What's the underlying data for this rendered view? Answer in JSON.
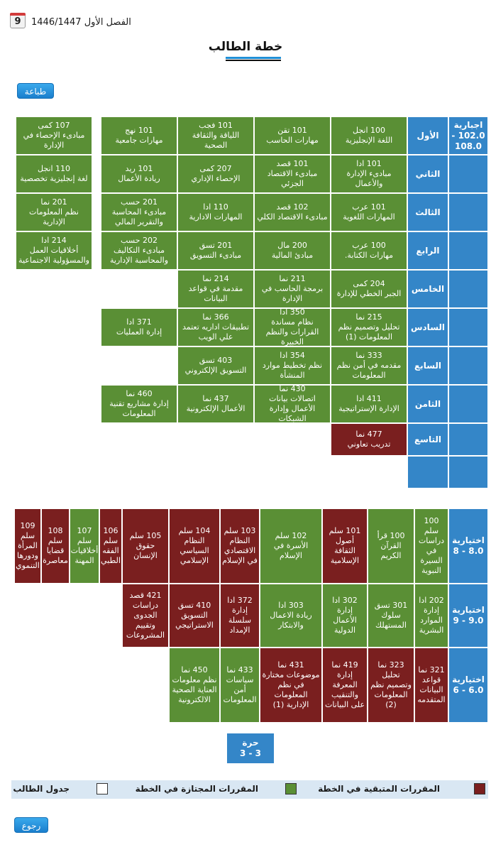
{
  "header": {
    "semester": "الفصل الأول 1446/1447",
    "calendar_day": "9",
    "title": "خطة الطالب"
  },
  "buttons": {
    "print": "طباعة",
    "back": "رجوع"
  },
  "mandatory": {
    "label": "اجبارية 102.0 - 108.0",
    "levels": [
      {
        "name": "الأول",
        "courses": [
          {
            "code": "100 انجل",
            "title": "اللغة الإنجليزية",
            "status": "passed"
          },
          {
            "code": "101 تقن",
            "title": "مهارات الحاسب",
            "status": "passed"
          },
          {
            "code": "101 فجب",
            "title": "اللياقة والثقافة الصحية",
            "status": "passed"
          },
          {
            "code": "101 نهج",
            "title": "مهارات جامعية",
            "status": "passed"
          },
          {
            "code": "107 كمى",
            "title": "مبادىء الإحصاء في الإدارة",
            "status": "passed"
          }
        ]
      },
      {
        "name": "الثاني",
        "courses": [
          {
            "code": "101 ادا",
            "title": "مبادىء الإدارة والأعمال",
            "status": "passed"
          },
          {
            "code": "101 قصد",
            "title": "مبادىء الاقتصاد الجزئي",
            "status": "passed"
          },
          {
            "code": "207 كمى",
            "title": "الإحصاء الإداري",
            "status": "passed"
          },
          {
            "code": "101 ريد",
            "title": "ريادة الأعمال",
            "status": "passed"
          },
          {
            "code": "110 انجل",
            "title": "لغة إنجليزية تخصصية",
            "status": "passed"
          }
        ]
      },
      {
        "name": "الثالث",
        "courses": [
          {
            "code": "101 عرب",
            "title": "المهارات اللغوية",
            "status": "passed"
          },
          {
            "code": "102 قصد",
            "title": "مبادىء الاقتصاد الكلي",
            "status": "passed"
          },
          {
            "code": "110 ادا",
            "title": "المهارات الادارية",
            "status": "passed"
          },
          {
            "code": "201 حسب",
            "title": "مبادىء المحاسبة والتقرير المالي",
            "status": "passed"
          },
          {
            "code": "201 نما",
            "title": "نظم المعلومات الإدارية",
            "status": "passed"
          }
        ]
      },
      {
        "name": "الرابع",
        "courses": [
          {
            "code": "100 عرب",
            "title": "مهارات الكتابة.",
            "status": "passed"
          },
          {
            "code": "200 مال",
            "title": "مبادئ المالية",
            "status": "passed"
          },
          {
            "code": "201 تسق",
            "title": "مبادىء التسويق",
            "status": "passed"
          },
          {
            "code": "202 حسب",
            "title": "مبادىء التكاليف والمحاسبة الإدارية",
            "status": "passed"
          },
          {
            "code": "214 ادا",
            "title": "أخلاقيات العمل والمسؤولية الاجتماعية",
            "status": "passed"
          }
        ]
      },
      {
        "name": "الخامس",
        "courses": [
          {
            "code": "204 كمى",
            "title": "الجبر الخطي للإدارة",
            "status": "passed"
          },
          {
            "code": "211 نما",
            "title": "برمجة الحاسب في الإدارة",
            "status": "passed"
          },
          {
            "code": "214 نما",
            "title": "مقدمة في قواعد البيانات",
            "status": "passed"
          }
        ]
      },
      {
        "name": "السادس",
        "courses": [
          {
            "code": "215 نما",
            "title": "تحليل وتصميم نظم المعلومات (1)",
            "status": "passed"
          },
          {
            "code": "350 ادا",
            "title": "نظام مساندة القرارات والنظم الخبيرة",
            "status": "passed"
          },
          {
            "code": "366 نما",
            "title": "تطبيقات اداريه تعتمد علي الويب",
            "status": "passed"
          },
          {
            "code": "371 ادا",
            "title": "إدارة العمليات",
            "status": "passed"
          }
        ]
      },
      {
        "name": "السابع",
        "courses": [
          {
            "code": "333 نما",
            "title": "مقدمه في أمن نظم المعلومات",
            "status": "passed"
          },
          {
            "code": "354 ادا",
            "title": "نظم تخطيط موارد المنشأة",
            "status": "passed"
          },
          {
            "code": "403 تسق",
            "title": "التسويق الإلكتروني",
            "status": "passed"
          }
        ]
      },
      {
        "name": "الثامن",
        "courses": [
          {
            "code": "411 ادا",
            "title": "الإدارة الإستراتيجية",
            "status": "passed"
          },
          {
            "code": "430 نما",
            "title": "اتصالات بيانات الأعمال وإدارة الشبكات",
            "status": "passed"
          },
          {
            "code": "437 نما",
            "title": "الأعمال الإلكترونية",
            "status": "passed"
          },
          {
            "code": "460 نما",
            "title": "إدارة مشاريع تقنية المعلومات",
            "status": "passed"
          }
        ]
      },
      {
        "name": "التاسع",
        "courses": [
          {
            "code": "477 نما",
            "title": "تدريب تعاوني",
            "status": "remaining"
          }
        ]
      },
      {
        "name": "",
        "courses": []
      }
    ]
  },
  "electives": [
    {
      "label": "اختيارية 8.0 - 8",
      "courses": [
        {
          "code": "100 سلم",
          "title": "دراسات في السيرة النبوية",
          "status": "passed"
        },
        {
          "code": "100 قرأ",
          "title": "القرآن الكريم",
          "status": "passed"
        },
        {
          "code": "101 سلم",
          "title": "أصول الثقافة الإسلامية",
          "status": "remaining"
        },
        {
          "code": "102 سلم",
          "title": "الأسرة في الإسلام",
          "status": "passed"
        },
        {
          "code": "103 سلم",
          "title": "النظام الاقتصادي في الإسلام",
          "status": "remaining"
        },
        {
          "code": "104 سلم",
          "title": "النظام السياسي الإسلامي",
          "status": "remaining"
        },
        {
          "code": "105 سلم",
          "title": "حقوق الإنسان",
          "status": "remaining"
        },
        {
          "code": "106 سلم",
          "title": "الفقه الطبي",
          "status": "remaining"
        },
        {
          "code": "107 سلم",
          "title": "أخلاقيات المهنة",
          "status": "passed"
        },
        {
          "code": "108 سلم",
          "title": "قضايا معاصرة",
          "status": "remaining"
        },
        {
          "code": "109 سلم",
          "title": "المرأة ودورها التنموي",
          "status": "remaining"
        }
      ]
    },
    {
      "label": "اختيارية 9.0 - 9",
      "courses": [
        {
          "code": "202 ادا",
          "title": "إدارة الموارد البشرية",
          "status": "passed"
        },
        {
          "code": "301 تسق",
          "title": "سلوك المستهلك",
          "status": "passed"
        },
        {
          "code": "302 ادا",
          "title": "إدارة الأعمال الدولية",
          "status": "passed"
        },
        {
          "code": "303 ادا",
          "title": "ريادة الاعمال والابتكار",
          "status": "passed"
        },
        {
          "code": "372 ادا",
          "title": "إدارة سلسلة الإمداد",
          "status": "remaining"
        },
        {
          "code": "410 تسق",
          "title": "التسويق الاستراتيجي",
          "status": "remaining"
        },
        {
          "code": "421 قصد",
          "title": "دراسات الجدوى وتقييم المشروعات",
          "status": "remaining"
        }
      ]
    },
    {
      "label": "اختيارية 6.0 - 6",
      "courses": [
        {
          "code": "321 نما",
          "title": "قواعد البيانات المتقدمه",
          "status": "remaining"
        },
        {
          "code": "323 نما",
          "title": "تحليل وتصميم نظم المعلومات (2)",
          "status": "remaining"
        },
        {
          "code": "419 نما",
          "title": "إدارة المعرفة والتنقيب على البيانات",
          "status": "remaining"
        },
        {
          "code": "431 نما",
          "title": "موضوعات مختارة في نظم المعلومات الإدارية (1)",
          "status": "remaining"
        },
        {
          "code": "433 نما",
          "title": "سياسات أمن المعلومات",
          "status": "passed"
        },
        {
          "code": "450 نما",
          "title": "نظم معلومات العناية الصحية الالكترونية",
          "status": "passed"
        }
      ]
    }
  ],
  "free": {
    "label": "حرة",
    "credits": "3 - 3"
  },
  "legend": {
    "remaining": "المقررات المتبقية في الخطة",
    "passed": "المقررات المجتازة في الخطة",
    "schedule": "جدول الطالب"
  },
  "colors": {
    "passed": "#5a8f35",
    "remaining": "#7a1f1f",
    "level": "#3486c8"
  }
}
